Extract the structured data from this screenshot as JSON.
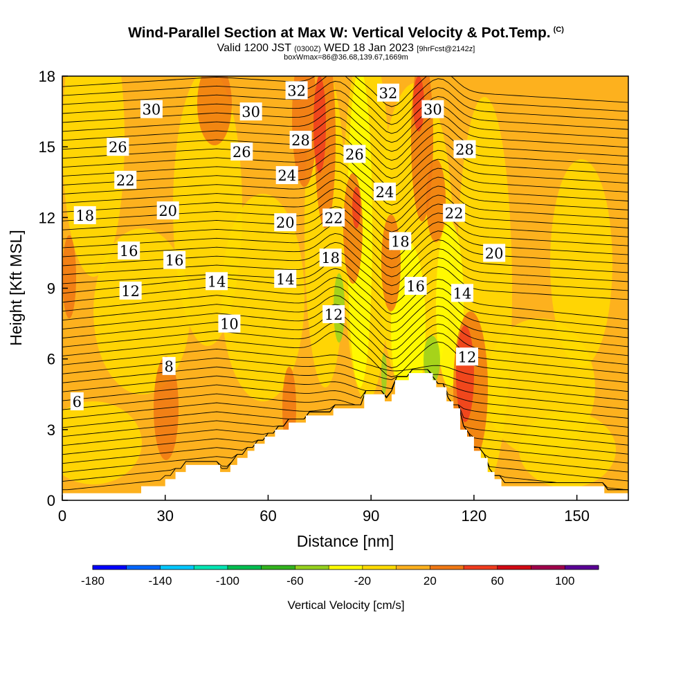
{
  "header": {
    "title": "Wind-Parallel Section at Max W: Vertical Velocity & Pot.Temp.",
    "copyright": "(C)",
    "valid_prefix": "Valid 1200 JST",
    "valid_zulu": "(0300Z)",
    "valid_date": "WED 18 Jan 2023",
    "forecast": "[9hrFcst@2142z]",
    "box_info": "boxWmax=86@36.68,139.67,1669m"
  },
  "colors": {
    "background_fill": "#FDB11E",
    "terrain": "#ffffff",
    "contour": "#000000"
  },
  "chart_data": {
    "type": "heatmap",
    "xlabel": "Distance [nm]",
    "ylabel": "Height [Kft MSL]",
    "xlim": [
      0,
      165
    ],
    "ylim": [
      0,
      18
    ],
    "x_ticks": [
      0,
      30,
      60,
      90,
      120,
      150
    ],
    "y_ticks": [
      0,
      3,
      6,
      9,
      12,
      15,
      18
    ],
    "colorbar": {
      "label": "Vertical Velocity [cm/s]",
      "tick_labels": [
        "-180",
        "-140",
        "-100",
        "-60",
        "-20",
        "20",
        "60",
        "100"
      ],
      "tick_values": [
        -180,
        -140,
        -100,
        -60,
        -20,
        20,
        60,
        100
      ],
      "bins": [
        {
          "min": -180,
          "max": -160,
          "color": "#0000FF"
        },
        {
          "min": -160,
          "max": -140,
          "color": "#0066FF"
        },
        {
          "min": -140,
          "max": -120,
          "color": "#00C8FF"
        },
        {
          "min": -120,
          "max": -100,
          "color": "#00E6B4"
        },
        {
          "min": -100,
          "max": -80,
          "color": "#00BE50"
        },
        {
          "min": -80,
          "max": -60,
          "color": "#32B41E"
        },
        {
          "min": -60,
          "max": -40,
          "color": "#96D21E"
        },
        {
          "min": -40,
          "max": -20,
          "color": "#FFFF00"
        },
        {
          "min": -20,
          "max": 0,
          "color": "#FFDC00"
        },
        {
          "min": 0,
          "max": 20,
          "color": "#FDB11E"
        },
        {
          "min": 20,
          "max": 40,
          "color": "#F07814"
        },
        {
          "min": 40,
          "max": 60,
          "color": "#F03C1E"
        },
        {
          "min": 60,
          "max": 80,
          "color": "#D20A14"
        },
        {
          "min": 80,
          "max": 100,
          "color": "#A0004B"
        },
        {
          "min": 100,
          "max": 120,
          "color": "#5A0096"
        }
      ]
    },
    "terrain_profile": {
      "x": [
        0,
        22,
        23,
        28,
        30,
        33,
        36,
        40,
        43,
        46,
        47,
        49,
        51,
        54,
        56,
        59,
        62,
        66,
        68,
        71,
        73,
        77,
        79,
        82,
        85,
        88,
        92,
        94,
        96,
        97,
        99,
        101,
        104,
        106,
        108,
        109,
        110,
        112,
        114,
        116,
        118,
        120,
        122,
        124,
        126,
        128,
        132,
        140,
        150,
        155,
        158,
        160,
        165
      ],
      "height_kft": [
        0.3,
        0.3,
        0.6,
        0.6,
        0.9,
        1.2,
        1.5,
        1.5,
        1.5,
        1.2,
        1.2,
        1.5,
        1.8,
        2.1,
        2.4,
        2.7,
        3.0,
        3.3,
        3.3,
        3.6,
        3.6,
        3.6,
        3.9,
        3.9,
        3.9,
        4.5,
        4.5,
        4.2,
        4.5,
        5.1,
        5.1,
        5.4,
        5.4,
        5.4,
        5.1,
        4.8,
        4.8,
        4.2,
        3.9,
        3.0,
        2.7,
        2.1,
        1.8,
        1.2,
        0.9,
        0.6,
        0.6,
        0.6,
        0.6,
        0.6,
        0.3,
        0.3,
        0.3
      ]
    },
    "contour_labels": [
      {
        "text": "6",
        "x": 4.3,
        "y": 4.2
      },
      {
        "text": "8",
        "x": 31.1,
        "y": 5.7
      },
      {
        "text": "10",
        "x": 48.7,
        "y": 7.5
      },
      {
        "text": "12",
        "x": 19.9,
        "y": 8.9
      },
      {
        "text": "14",
        "x": 45.0,
        "y": 9.3
      },
      {
        "text": "14",
        "x": 65.0,
        "y": 9.4
      },
      {
        "text": "16",
        "x": 19.4,
        "y": 10.6
      },
      {
        "text": "16",
        "x": 32.7,
        "y": 10.2
      },
      {
        "text": "18",
        "x": 6.6,
        "y": 12.1
      },
      {
        "text": "20",
        "x": 30.8,
        "y": 12.3
      },
      {
        "text": "20",
        "x": 65.0,
        "y": 11.8
      },
      {
        "text": "22",
        "x": 18.4,
        "y": 13.6
      },
      {
        "text": "24",
        "x": 65.5,
        "y": 13.8
      },
      {
        "text": "26",
        "x": 16.2,
        "y": 15.0
      },
      {
        "text": "26",
        "x": 52.3,
        "y": 14.8
      },
      {
        "text": "28",
        "x": 69.5,
        "y": 15.3
      },
      {
        "text": "30",
        "x": 26.0,
        "y": 16.6
      },
      {
        "text": "30",
        "x": 55.0,
        "y": 16.5
      },
      {
        "text": "32",
        "x": 68.3,
        "y": 17.4
      },
      {
        "text": "22",
        "x": 79.1,
        "y": 12.0
      },
      {
        "text": "18",
        "x": 78.2,
        "y": 10.3
      },
      {
        "text": "12",
        "x": 79.1,
        "y": 7.9
      },
      {
        "text": "26",
        "x": 85.2,
        "y": 14.7
      },
      {
        "text": "32",
        "x": 95.0,
        "y": 17.3
      },
      {
        "text": "24",
        "x": 94.0,
        "y": 13.1
      },
      {
        "text": "18",
        "x": 98.5,
        "y": 11.0
      },
      {
        "text": "16",
        "x": 103.0,
        "y": 9.1
      },
      {
        "text": "30",
        "x": 108.0,
        "y": 16.6
      },
      {
        "text": "28",
        "x": 117.3,
        "y": 14.9
      },
      {
        "text": "22",
        "x": 114.2,
        "y": 12.2
      },
      {
        "text": "20",
        "x": 125.9,
        "y": 10.5
      },
      {
        "text": "14",
        "x": 116.6,
        "y": 8.8
      },
      {
        "text": "12",
        "x": 118.0,
        "y": 6.1
      }
    ]
  }
}
